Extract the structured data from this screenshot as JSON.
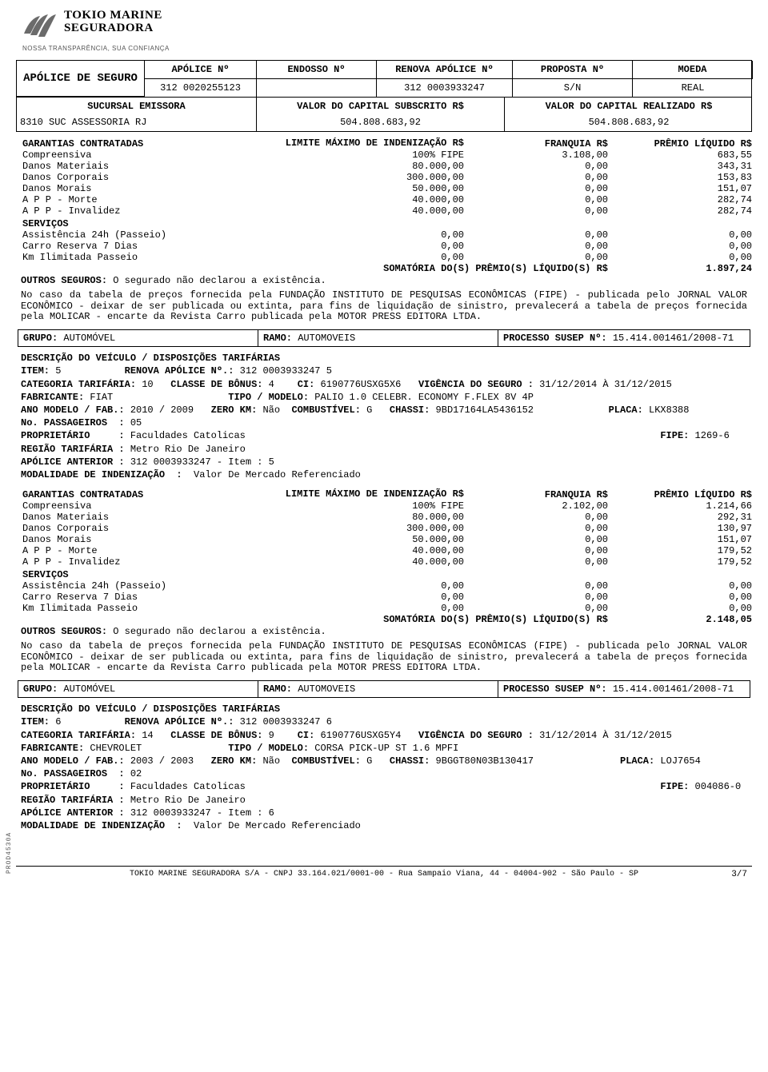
{
  "brand": {
    "line1": "TOKIO MARINE",
    "line2": "SEGURADORA",
    "tagline": "NOSSA TRANSPARÊNCIA, SUA CONFIANÇA",
    "logo_color": "#6b6b6b"
  },
  "header": {
    "title": "APÓLICE DE SEGURO",
    "cols": {
      "apolice_n_label": "APÓLICE Nº",
      "endosso_n_label": "ENDOSSO Nº",
      "renova_label": "RENOVA APÓLICE Nº",
      "proposta_label": "PROPOSTA Nº",
      "moeda_label": "MOEDA",
      "apolice_n": "312 0020255123",
      "endosso_n": "",
      "renova": "312 0003933247",
      "proposta": "S/N",
      "moeda": "REAL"
    },
    "row3": {
      "sucursal_label": "SUCURSAL EMISSORA",
      "cap_sub_label": "VALOR DO CAPITAL SUBSCRITO R$",
      "cap_real_label": "VALOR DO CAPITAL REALIZADO R$",
      "sucursal": "8310 SUC ASSESSORIA RJ",
      "cap_sub": "504.808.683,92",
      "cap_real": "504.808.683,92"
    }
  },
  "section1": {
    "headers": {
      "garantias": "GARANTIAS CONTRATADAS",
      "limite": "LIMITE MÁXIMO DE INDENIZAÇÃO R$",
      "franquia": "FRANQUIA R$",
      "premio": "PRÊMIO LÍQUIDO R$"
    },
    "rows": [
      {
        "g": "Compreensiva",
        "l": "100% FIPE",
        "f": "3.108,00",
        "p": "683,55"
      },
      {
        "g": "Danos Materiais",
        "l": "80.000,00",
        "f": "0,00",
        "p": "343,31"
      },
      {
        "g": "Danos Corporais",
        "l": "300.000,00",
        "f": "0,00",
        "p": "153,83"
      },
      {
        "g": "Danos Morais",
        "l": "50.000,00",
        "f": "0,00",
        "p": "151,07"
      },
      {
        "g": "A P P - Morte",
        "l": "40.000,00",
        "f": "0,00",
        "p": "282,74"
      },
      {
        "g": "A P P - Invalidez",
        "l": "40.000,00",
        "f": "0,00",
        "p": "282,74"
      }
    ],
    "servicos_label": "SERVIÇOS",
    "servicos": [
      {
        "g": "Assistência 24h (Passeio)",
        "l": "0,00",
        "f": "0,00",
        "p": "0,00"
      },
      {
        "g": "Carro Reserva 7 Dias",
        "l": "0,00",
        "f": "0,00",
        "p": "0,00"
      },
      {
        "g": "Km Ilimitada Passeio",
        "l": "0,00",
        "f": "0,00",
        "p": "0,00"
      }
    ],
    "sum_label": "SOMATÓRIA DO(S) PRÊMIO(S) LÍQUIDO(S) R$",
    "sum_value": "1.897,24",
    "outros_label": "OUTROS SEGUROS:",
    "outros_text": " O segurado não declarou a existência.",
    "nota": "No caso da tabela de preços fornecida pela FUNDAÇÃO INSTITUTO DE PESQUISAS ECONÔMICAS (FIPE) - publicada pelo JORNAL VALOR ECONÔMICO - deixar de ser publicada ou extinta, para fins de liquidação de sinistro, prevalecerá a tabela de preços fornecida pela MOLICAR - encarte da Revista Carro publicada pela MOTOR PRESS EDITORA LTDA."
  },
  "gr_box": {
    "grupo_label": "GRUPO:",
    "grupo": " AUTOMÓVEL",
    "ramo_label": "RAMO:",
    "ramo": " AUTOMOVEIS",
    "susep_label": "PROCESSO SUSEP Nº:",
    "susep": " 15.414.001461/2008-71"
  },
  "veh1": {
    "desc_title": "DESCRIÇÃO DO VEÍCULO / DISPOSIÇÕES TARIFÁRIAS",
    "item_label": "ITEM:",
    "item": " 5",
    "renova_label": "RENOVA APÓLICE Nº.:",
    "renova": " 312 0003933247 5",
    "cat_label": "CATEGORIA TARIFÁRIA:",
    "cat": " 10",
    "bonus_label": "CLASSE DE BÔNUS:",
    "bonus": " 4",
    "ci_label": "CI:",
    "ci": " 6190776USXG5X6",
    "vig_label": "VIGÊNCIA DO SEGURO :",
    "vig": " 31/12/2014 À 31/12/2015",
    "fab_label": "FABRICANTE:",
    "fab": " FIAT",
    "tipo_label": "TIPO / MODELO:",
    "tipo": " PALIO 1.0 CELEBR. ECONOMY F.FLEX 8V 4P",
    "ano_label": "ANO MODELO / FAB.:",
    "ano": " 2010 / 2009",
    "zero_label": "ZERO KM:",
    "zero": " Não",
    "comb_label": "COMBUSTÍVEL:",
    "comb": " G",
    "chassi_label": "CHASSI:",
    "chassi": " 9BD17164LA5436152",
    "placa_label": "PLACA:",
    "placa": " LKX8388",
    "pass_label": "No. PASSAGEIROS  :",
    "pass": " 05",
    "prop_label": "PROPRIETÁRIO     :",
    "prop": " Faculdades Catolicas",
    "fipe_label": "FIPE:",
    "fipe": " 1269-6",
    "reg_label": "REGIÃO TARIFÁRIA :",
    "reg": " Metro Rio De Janeiro",
    "ant_label": "APÓLICE ANTERIOR :",
    "ant": " 312 0003933247 - Item : 5",
    "mod_label": "MODALIDADE DE INDENIZAÇÃO  :",
    "mod": "  Valor De Mercado Referenciado"
  },
  "section2": {
    "headers": {
      "garantias": "GARANTIAS CONTRATADAS",
      "limite": "LIMITE MÁXIMO DE INDENIZAÇÃO R$",
      "franquia": "FRANQUIA R$",
      "premio": "PRÊMIO LÍQUIDO R$"
    },
    "rows": [
      {
        "g": "Compreensiva",
        "l": "100% FIPE",
        "f": "2.102,00",
        "p": "1.214,66"
      },
      {
        "g": "Danos Materiais",
        "l": "80.000,00",
        "f": "0,00",
        "p": "292,31"
      },
      {
        "g": "Danos Corporais",
        "l": "300.000,00",
        "f": "0,00",
        "p": "130,97"
      },
      {
        "g": "Danos Morais",
        "l": "50.000,00",
        "f": "0,00",
        "p": "151,07"
      },
      {
        "g": "A P P - Morte",
        "l": "40.000,00",
        "f": "0,00",
        "p": "179,52"
      },
      {
        "g": "A P P - Invalidez",
        "l": "40.000,00",
        "f": "0,00",
        "p": "179,52"
      }
    ],
    "servicos_label": "SERVIÇOS",
    "servicos": [
      {
        "g": "Assistência 24h (Passeio)",
        "l": "0,00",
        "f": "0,00",
        "p": "0,00"
      },
      {
        "g": "Carro Reserva 7 Dias",
        "l": "0,00",
        "f": "0,00",
        "p": "0,00"
      },
      {
        "g": "Km Ilimitada Passeio",
        "l": "0,00",
        "f": "0,00",
        "p": "0,00"
      }
    ],
    "sum_label": "SOMATÓRIA DO(S) PRÊMIO(S) LÍQUIDO(S) R$",
    "sum_value": "2.148,05",
    "outros_label": "OUTROS SEGUROS:",
    "outros_text": " O segurado não declarou a existência.",
    "nota": "No caso da tabela de preços fornecida pela FUNDAÇÃO INSTITUTO DE PESQUISAS ECONÔMICAS (FIPE) - publicada pelo JORNAL VALOR ECONÔMICO - deixar de ser publicada ou extinta, para fins de liquidação de sinistro, prevalecerá a tabela de preços fornecida pela MOLICAR - encarte da Revista Carro publicada pela MOTOR PRESS EDITORA LTDA."
  },
  "veh2": {
    "desc_title": "DESCRIÇÃO DO VEÍCULO / DISPOSIÇÕES TARIFÁRIAS",
    "item_label": "ITEM:",
    "item": " 6",
    "renova_label": "RENOVA APÓLICE Nº.:",
    "renova": " 312 0003933247 6",
    "cat_label": "CATEGORIA TARIFÁRIA:",
    "cat": " 14",
    "bonus_label": "CLASSE DE BÔNUS:",
    "bonus": " 9",
    "ci_label": "CI:",
    "ci": " 6190776USXG5Y4",
    "vig_label": "VIGÊNCIA DO SEGURO :",
    "vig": " 31/12/2014 À 31/12/2015",
    "fab_label": "FABRICANTE:",
    "fab": " CHEVROLET",
    "tipo_label": "TIPO / MODELO:",
    "tipo": " CORSA PICK-UP ST 1.6 MPFI",
    "ano_label": "ANO MODELO / FAB.:",
    "ano": " 2003 / 2003",
    "zero_label": "ZERO KM:",
    "zero": " Não",
    "comb_label": "COMBUSTÍVEL:",
    "comb": " G",
    "chassi_label": "CHASSI:",
    "chassi": " 9BGGT80N03B130417",
    "placa_label": "PLACA:",
    "placa": " LOJ7654",
    "pass_label": "No. PASSAGEIROS  :",
    "pass": " 02",
    "prop_label": "PROPRIETÁRIO     :",
    "prop": " Faculdades Catolicas",
    "fipe_label": "FIPE:",
    "fipe": " 004086-0",
    "reg_label": "REGIÃO TARIFÁRIA :",
    "reg": " Metro Rio De Janeiro",
    "ant_label": "APÓLICE ANTERIOR :",
    "ant": " 312 0003933247 - Item : 6",
    "mod_label": "MODALIDADE DE INDENIZAÇÃO  :",
    "mod": "  Valor De Mercado Referenciado"
  },
  "footer": {
    "text": "TOKIO MARINE SEGURADORA S/A - CNPJ 33.164.021/0001-00 - Rua Sampaio Viana, 44 - 04004-902 - São Paulo - SP",
    "page": "3/7",
    "side_code": "PROD4530A"
  }
}
